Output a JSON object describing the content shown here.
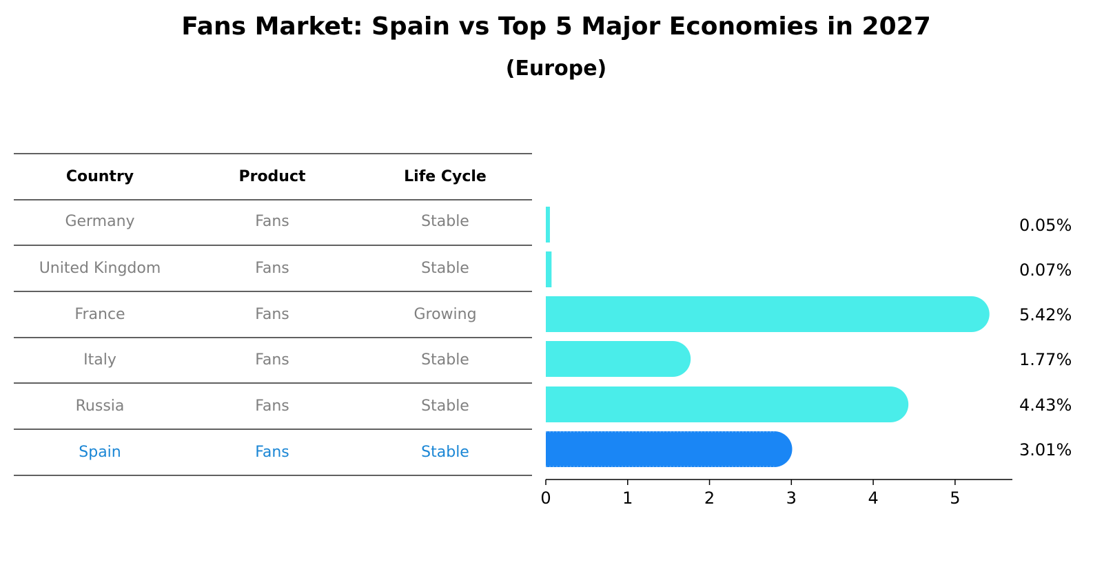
{
  "title": "Fans Market: Spain vs Top 5 Major Economies in 2027",
  "subtitle": "(Europe)",
  "table": {
    "headers": [
      "Country",
      "Product",
      "Life Cycle"
    ],
    "rows": [
      {
        "country": "Germany",
        "product": "Fans",
        "life_cycle": "Stable",
        "highlight": false
      },
      {
        "country": "United Kingdom",
        "product": "Fans",
        "life_cycle": "Stable",
        "highlight": false
      },
      {
        "country": "France",
        "product": "Fans",
        "life_cycle": "Growing",
        "highlight": false
      },
      {
        "country": "Italy",
        "product": "Fans",
        "life_cycle": "Stable",
        "highlight": false
      },
      {
        "country": "Russia",
        "product": "Fans",
        "life_cycle": "Stable",
        "highlight": false
      },
      {
        "country": "Spain",
        "product": "Fans",
        "life_cycle": "Stable",
        "highlight": true
      }
    ]
  },
  "colors": {
    "bar": "#4AEDEA",
    "highlight_bar": "#1A86F5",
    "text_muted": "#808080",
    "text_highlight": "#1A86D5",
    "rule": "#000000"
  },
  "chart_data": {
    "type": "bar",
    "orientation": "horizontal",
    "categories": [
      "Germany",
      "United Kingdom",
      "France",
      "Italy",
      "Russia",
      "Spain"
    ],
    "values": [
      0.05,
      0.07,
      5.42,
      1.77,
      4.43,
      3.01
    ],
    "value_labels": [
      "0.05%",
      "0.07%",
      "5.42%",
      "1.77%",
      "4.43%",
      "3.01%"
    ],
    "xticks": [
      0,
      1,
      2,
      3,
      4,
      5
    ],
    "xlim": [
      0,
      5.7
    ],
    "grid": false
  }
}
